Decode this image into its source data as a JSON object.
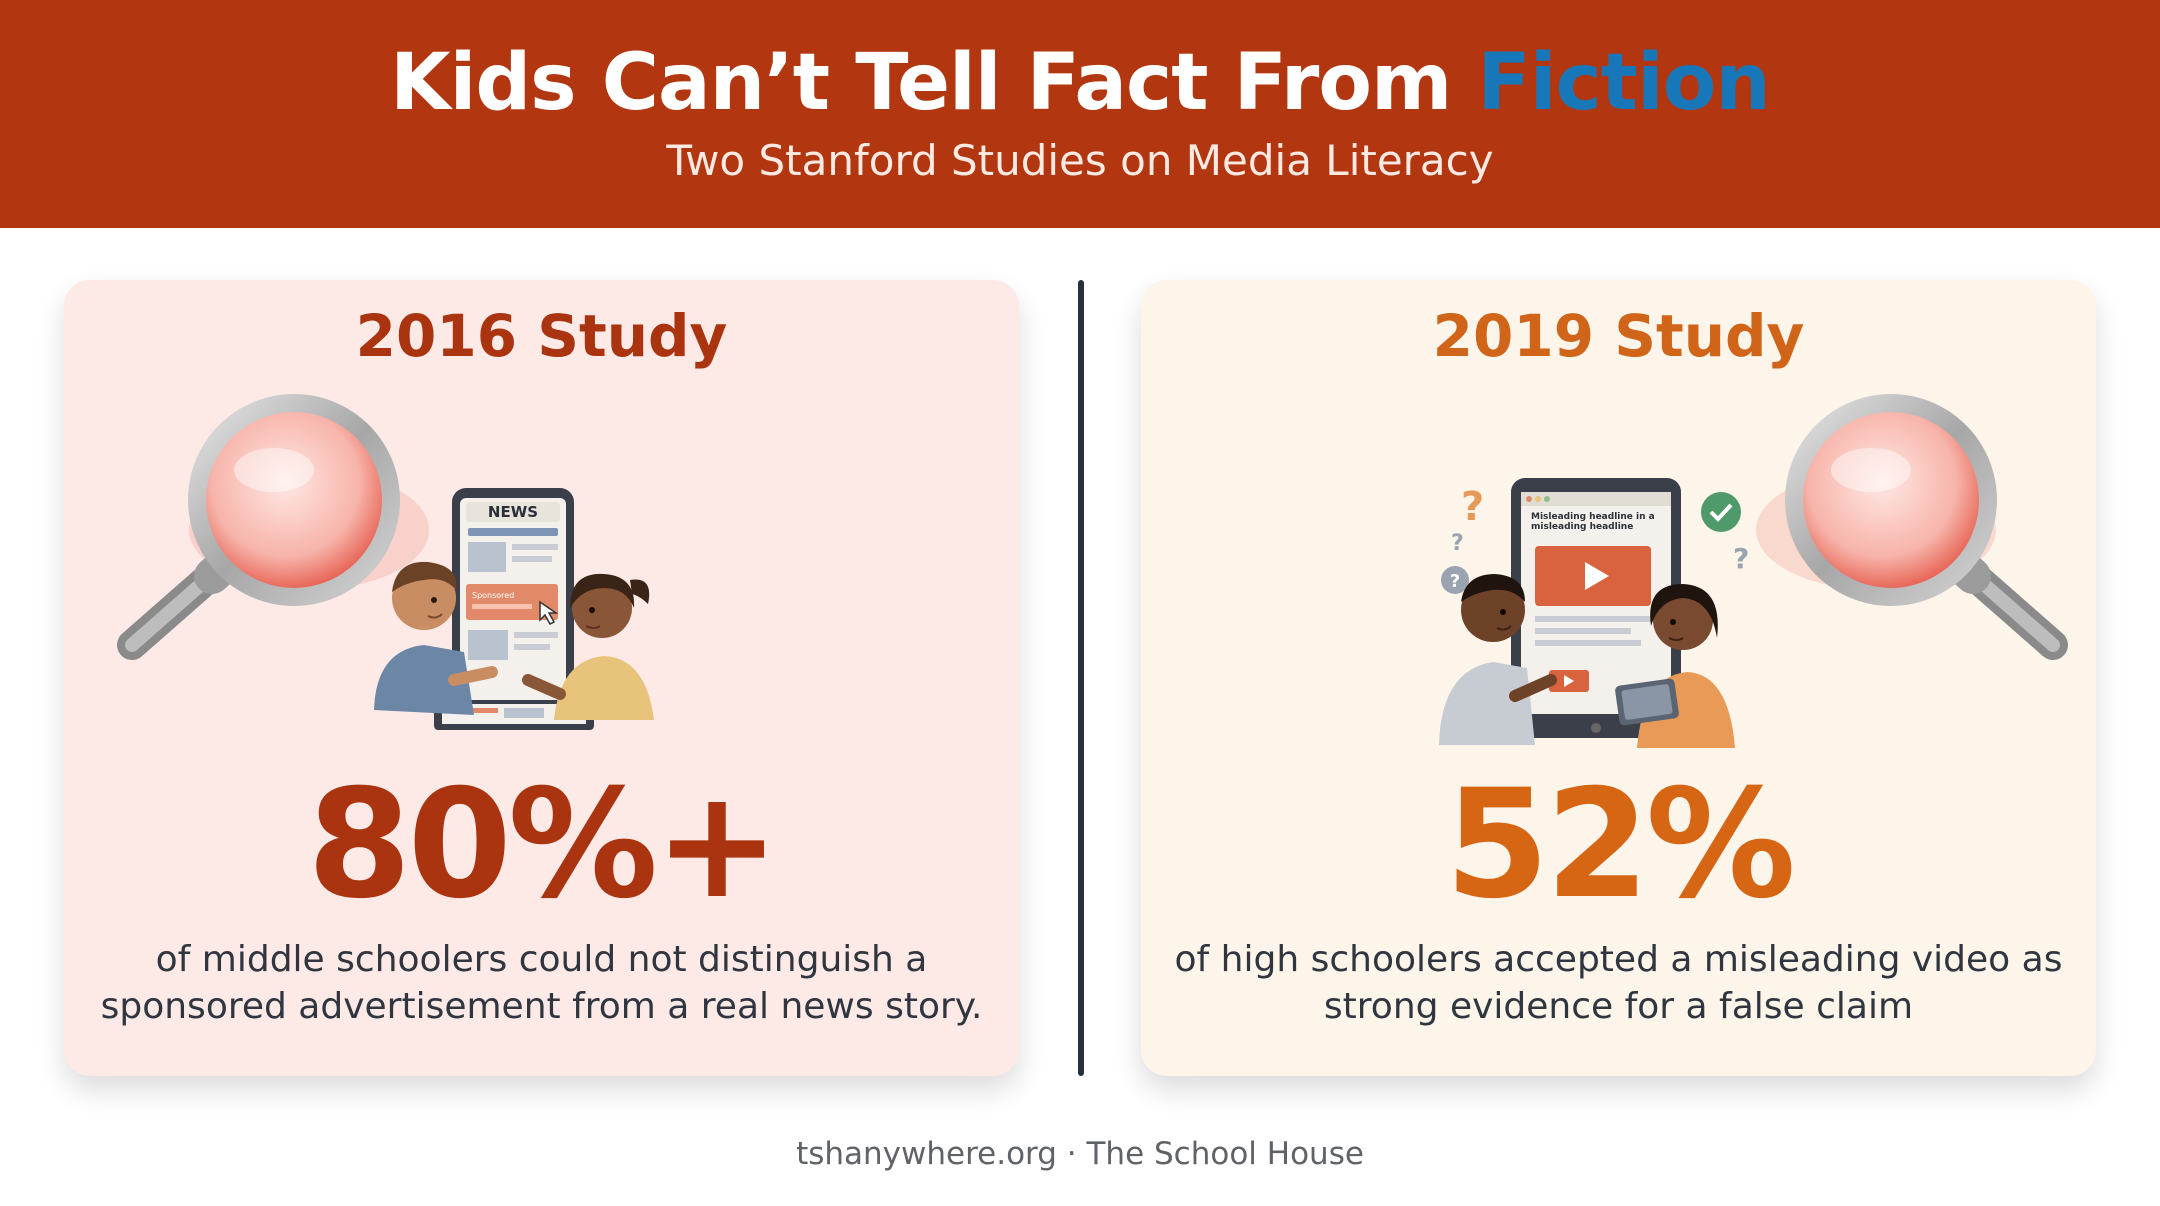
{
  "header": {
    "title_main": "Kids Can’t Tell Fact From",
    "title_accent": "Fiction",
    "subtitle": "Two Stanford Studies on Media Literacy",
    "background_color": "#b2360f",
    "accent_color": "#1877b8"
  },
  "studies": [
    {
      "title": "2016 Study",
      "stat": "80%+",
      "description": "of middle schoolers could not distinguish a sponsored advertisement from a real news story.",
      "color": "#a9340f",
      "illustration": {
        "icons": [
          "magnifying-glass-icon",
          "phone-icon",
          "student-boy",
          "student-girl",
          "cursor-icon"
        ],
        "screen_header": "NEWS",
        "screen_tag": "Sponsored"
      }
    },
    {
      "title": "2019 Study",
      "stat": "52%",
      "description": "of high schoolers accepted a misleading video as strong evidence for a false claim",
      "color": "#d66614",
      "illustration": {
        "icons": [
          "magnifying-glass-icon",
          "tablet-icon",
          "play-icon",
          "question-mark-icon",
          "checkmark-icon",
          "student-boy",
          "student-girl"
        ],
        "screen_headline": "Misleading headline in a misleading headline",
        "marks": [
          "?",
          "?",
          "?",
          "?"
        ]
      }
    }
  ],
  "footer": {
    "text": "tshanywhere.org · The School House"
  }
}
